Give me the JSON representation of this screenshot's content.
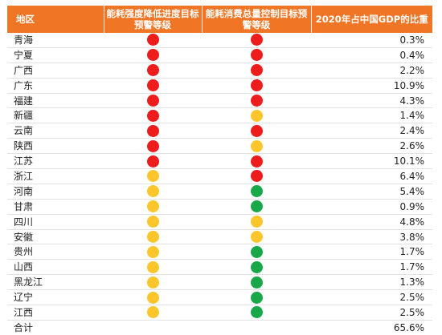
{
  "headers": {
    "region": "地区",
    "intensity": "能耗强度降低进度目标预警等级",
    "consumption": "能耗消费总量控制目标预警等级",
    "gdp": "2020年占中国GDP的比重"
  },
  "colors": {
    "header_bg": "#f07524",
    "red": "#ee1c1c",
    "yellow": "#fbc62c",
    "green": "#18a84a"
  },
  "rows": [
    {
      "region": "青海",
      "intensity": "red",
      "consumption": "red",
      "gdp": "0.3%"
    },
    {
      "region": "宁夏",
      "intensity": "red",
      "consumption": "red",
      "gdp": "0.4%"
    },
    {
      "region": "广西",
      "intensity": "red",
      "consumption": "red",
      "gdp": "2.2%"
    },
    {
      "region": "广东",
      "intensity": "red",
      "consumption": "red",
      "gdp": "10.9%"
    },
    {
      "region": "福建",
      "intensity": "red",
      "consumption": "red",
      "gdp": "4.3%"
    },
    {
      "region": "新疆",
      "intensity": "red",
      "consumption": "yellow",
      "gdp": "1.4%"
    },
    {
      "region": "云南",
      "intensity": "red",
      "consumption": "red",
      "gdp": "2.4%"
    },
    {
      "region": "陕西",
      "intensity": "red",
      "consumption": "yellow",
      "gdp": "2.6%"
    },
    {
      "region": "江苏",
      "intensity": "red",
      "consumption": "red",
      "gdp": "10.1%"
    },
    {
      "region": "浙江",
      "intensity": "yellow",
      "consumption": "red",
      "gdp": "6.4%"
    },
    {
      "region": "河南",
      "intensity": "yellow",
      "consumption": "green",
      "gdp": "5.4%"
    },
    {
      "region": "甘肃",
      "intensity": "yellow",
      "consumption": "green",
      "gdp": "0.9%"
    },
    {
      "region": "四川",
      "intensity": "yellow",
      "consumption": "yellow",
      "gdp": "4.8%"
    },
    {
      "region": "安徽",
      "intensity": "yellow",
      "consumption": "yellow",
      "gdp": "3.8%"
    },
    {
      "region": "贵州",
      "intensity": "yellow",
      "consumption": "green",
      "gdp": "1.7%"
    },
    {
      "region": "山西",
      "intensity": "yellow",
      "consumption": "green",
      "gdp": "1.7%"
    },
    {
      "region": "黑龙江",
      "intensity": "yellow",
      "consumption": "green",
      "gdp": "1.3%"
    },
    {
      "region": "辽宁",
      "intensity": "yellow",
      "consumption": "green",
      "gdp": "2.5%"
    },
    {
      "region": "江西",
      "intensity": "yellow",
      "consumption": "green",
      "gdp": "2.5%"
    }
  ],
  "total": {
    "label": "合计",
    "gdp": "65.6%"
  }
}
